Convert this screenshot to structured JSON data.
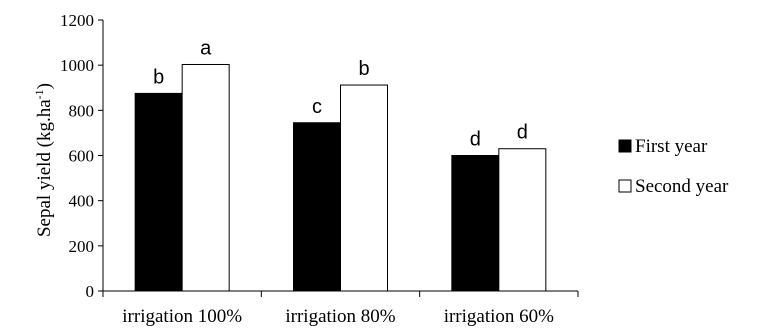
{
  "chart_data": {
    "type": "bar",
    "categories": [
      "irrigation 100%",
      "irrigation 80%",
      "irrigation 60%"
    ],
    "series": [
      {
        "name": "First year",
        "values": [
          875,
          745,
          600
        ],
        "labels": [
          "b",
          "c",
          "d"
        ],
        "color": "#000000"
      },
      {
        "name": "Second year",
        "values": [
          1003,
          912,
          630
        ],
        "labels": [
          "a",
          "b",
          "d"
        ],
        "color": "#ffffff"
      }
    ],
    "ylabel_main": "Sepal yield (kg.ha",
    "ylabel_sup": "-1",
    "ylabel_end": ")",
    "xlabel": "",
    "ylim": [
      0,
      1200
    ],
    "yticks": [
      "0",
      "200",
      "400",
      "600",
      "800",
      "1000",
      "1200"
    ],
    "grid": false,
    "legend": "right"
  }
}
